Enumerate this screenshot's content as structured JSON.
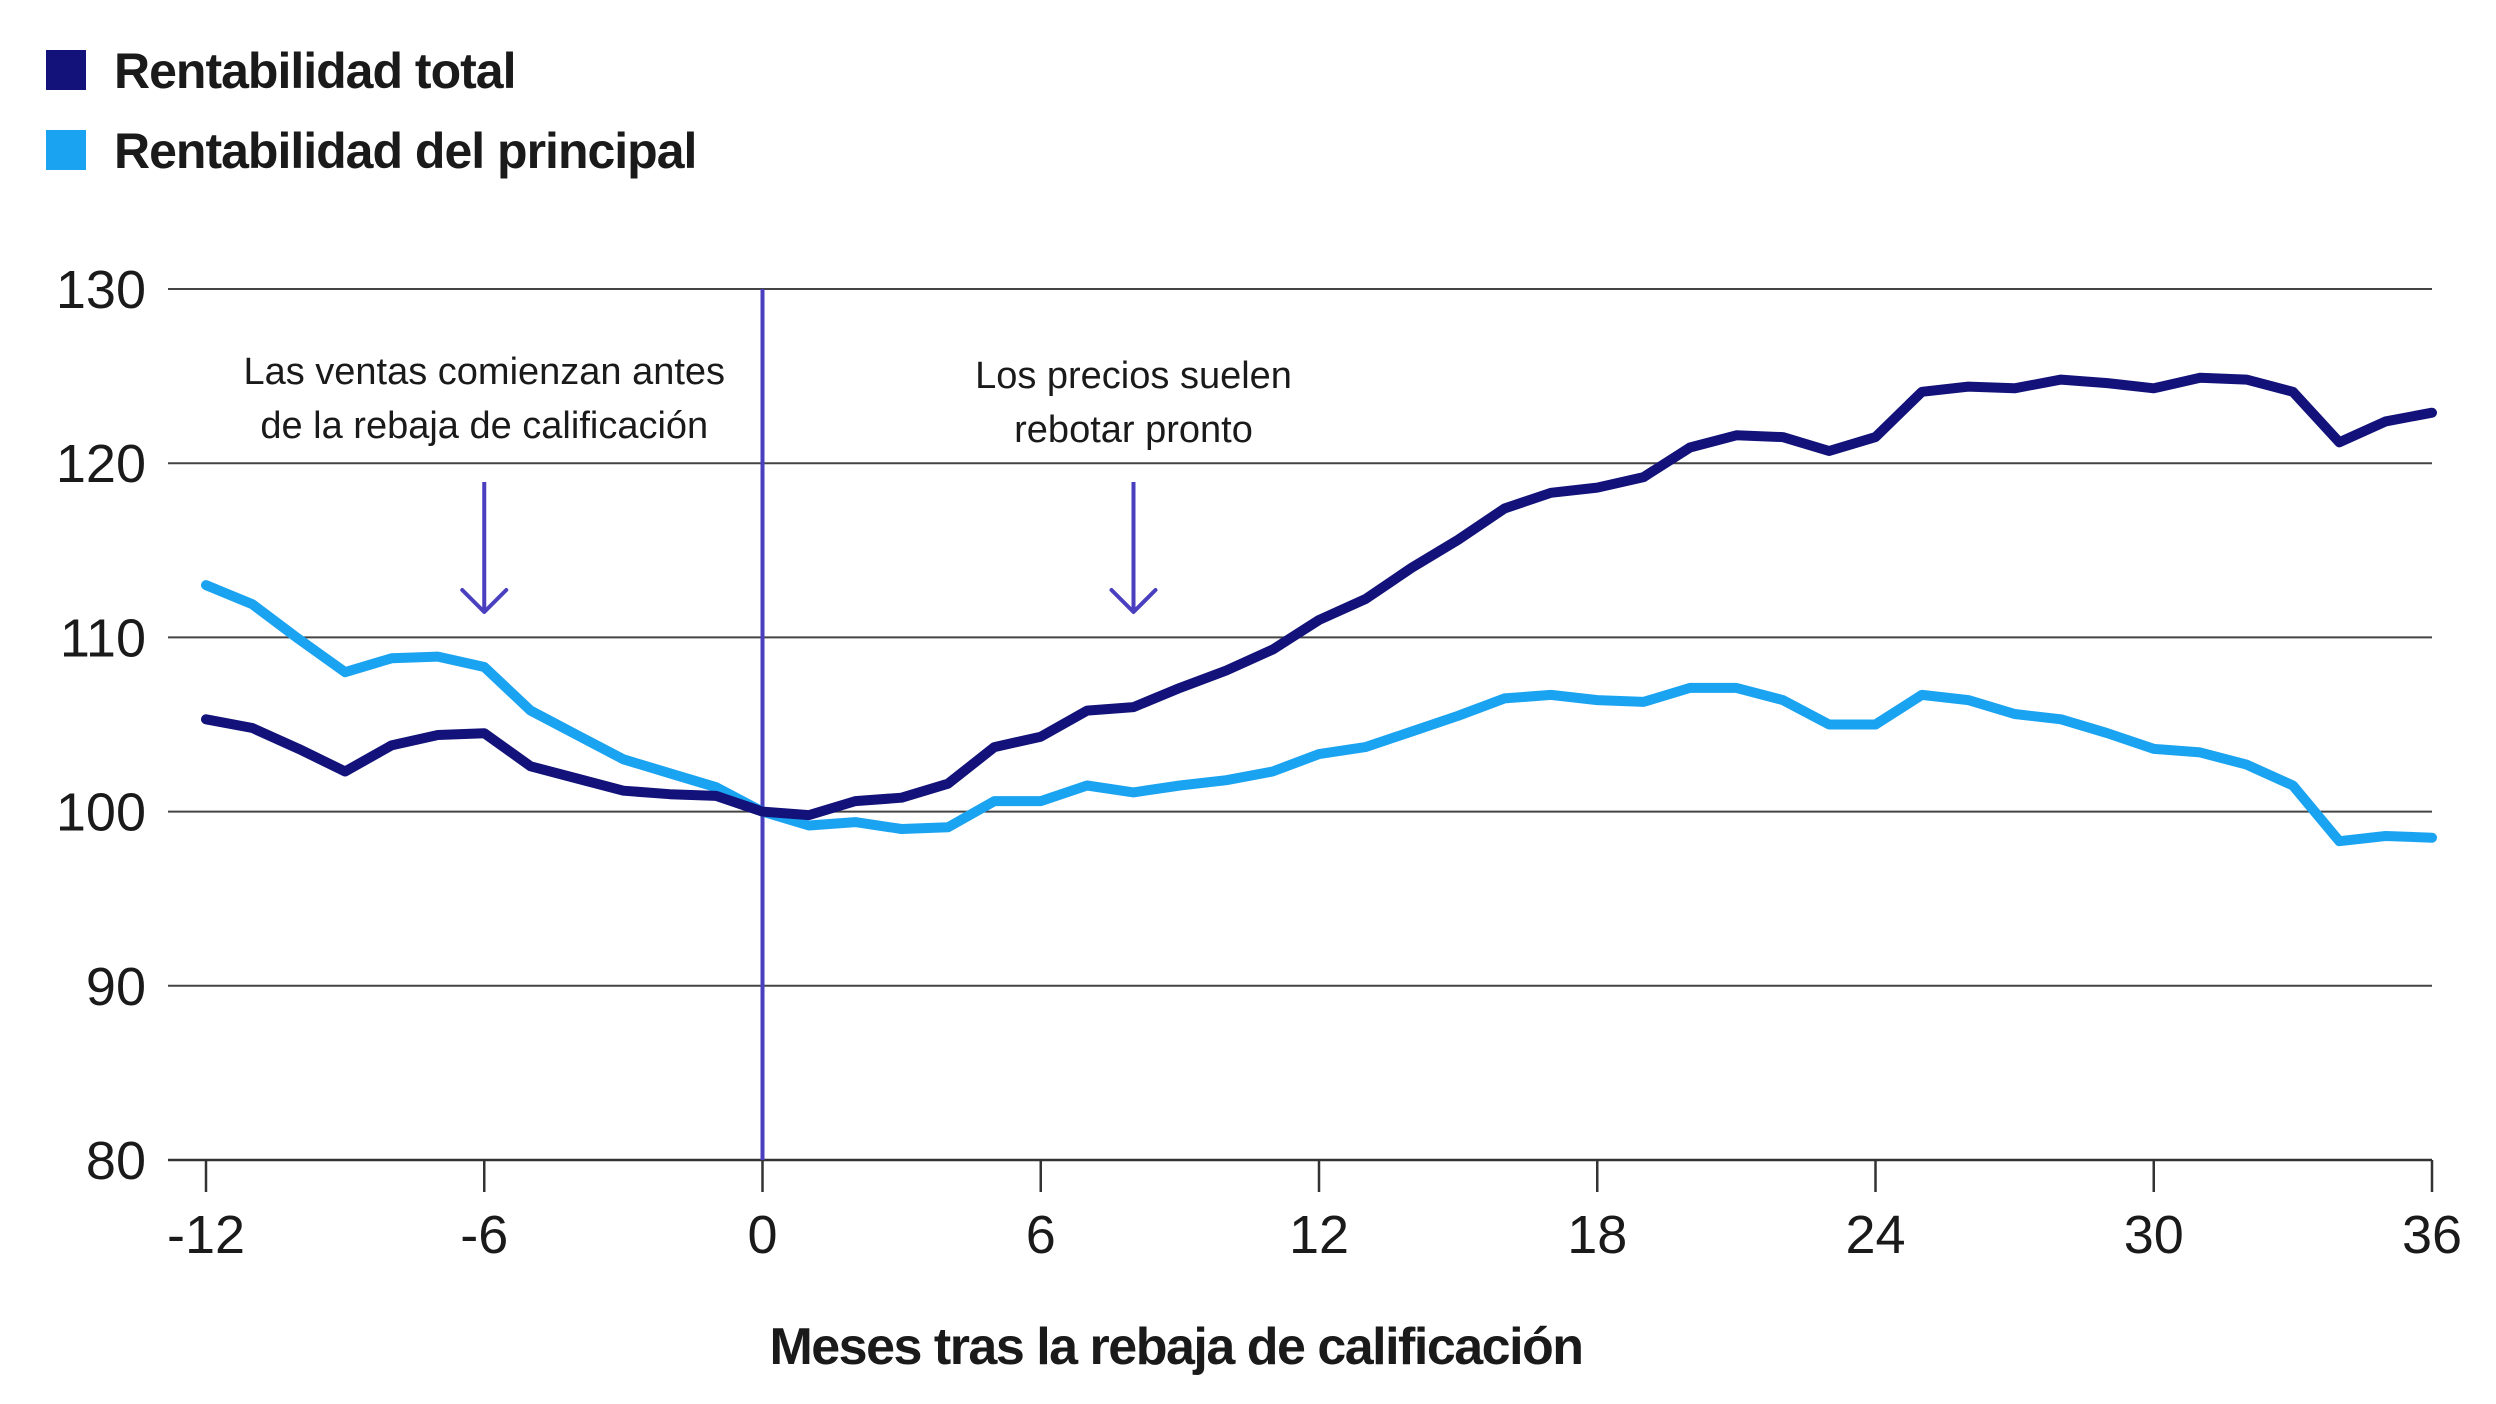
{
  "chart_data": {
    "type": "line",
    "title": "",
    "xlabel": "Meses tras la rebaja de calificación",
    "ylabel": "",
    "xlim": [
      -12,
      36
    ],
    "ylim": [
      80,
      130
    ],
    "x_ticks": [
      -12,
      -6,
      0,
      6,
      12,
      18,
      24,
      30,
      36
    ],
    "x_tick_labels": [
      "-12",
      "-6",
      "0",
      "6",
      "12",
      "18",
      "24",
      "30",
      "36"
    ],
    "y_ticks": [
      80,
      90,
      100,
      110,
      120,
      130
    ],
    "y_tick_labels": [
      "80",
      "90",
      "100",
      "110",
      "120",
      "130"
    ],
    "grid": "horizontal",
    "legend_position": "top-left",
    "vertical_marker_x": 0,
    "x": [
      -12,
      -11,
      -10,
      -9,
      -8,
      -7,
      -6,
      -5,
      -4,
      -3,
      -2,
      -1,
      0,
      1,
      2,
      3,
      4,
      5,
      6,
      7,
      8,
      9,
      10,
      11,
      12,
      13,
      14,
      15,
      16,
      17,
      18,
      19,
      20,
      21,
      22,
      23,
      24,
      25,
      26,
      27,
      28,
      29,
      30,
      31,
      32,
      33,
      34,
      35,
      36
    ],
    "series": [
      {
        "name": "Rentabilidad total",
        "color": "#12127a",
        "values": [
          105.3,
          104.8,
          103.6,
          102.3,
          103.8,
          104.4,
          104.5,
          102.6,
          101.9,
          101.2,
          101.0,
          100.9,
          100.0,
          99.8,
          100.6,
          100.8,
          101.6,
          103.7,
          104.3,
          105.8,
          106.0,
          107.1,
          108.1,
          109.3,
          111.0,
          112.2,
          114.0,
          115.6,
          117.4,
          118.3,
          118.6,
          119.2,
          120.9,
          121.6,
          121.5,
          120.7,
          121.5,
          124.1,
          124.4,
          124.3,
          124.8,
          124.6,
          124.3,
          124.9,
          124.8,
          124.1,
          121.2,
          122.4,
          122.9
        ]
      },
      {
        "name": "Rentabilidad del principal",
        "color": "#1aa3f0",
        "values": [
          113.0,
          111.9,
          109.9,
          108.0,
          108.8,
          108.9,
          108.3,
          105.8,
          104.4,
          103.0,
          102.2,
          101.4,
          100.0,
          99.2,
          99.4,
          99.0,
          99.1,
          100.6,
          100.6,
          101.5,
          101.1,
          101.5,
          101.8,
          102.3,
          103.3,
          103.7,
          104.6,
          105.5,
          106.5,
          106.7,
          106.4,
          106.3,
          107.1,
          107.1,
          106.4,
          105.0,
          105.0,
          106.7,
          106.4,
          105.6,
          105.3,
          104.5,
          103.6,
          103.4,
          102.7,
          101.5,
          98.3,
          98.6,
          98.5
        ]
      }
    ],
    "annotations": [
      {
        "lines": [
          "Las ventas comienzan antes",
          "de la rebaja de calificación"
        ],
        "arrow_x": -6
      },
      {
        "lines": [
          "Los precios suelen",
          "rebotar pronto"
        ],
        "arrow_x": 8
      }
    ],
    "colors": {
      "axis": "#333333",
      "grid": "#444444",
      "marker": "#4a3fbf",
      "arrow": "#4a3fbf"
    }
  }
}
